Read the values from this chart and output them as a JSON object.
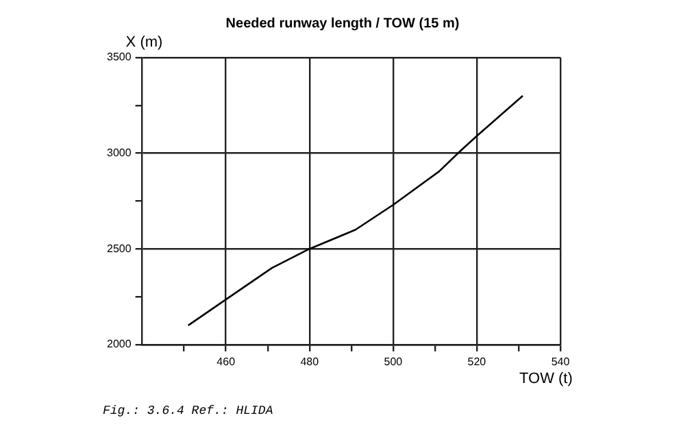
{
  "chart_data": {
    "type": "line",
    "title": "Needed runway length / TOW (15 m)",
    "xlabel": "TOW (t)",
    "ylabel": "X (m)",
    "x": [
      451,
      460,
      471,
      480,
      491,
      500,
      511,
      516,
      520,
      531
    ],
    "series": [
      {
        "color": "#000000",
        "values": [
          2100,
          2235,
          2400,
          2500,
          2600,
          2730,
          2905,
          3010,
          3090,
          3300
        ]
      }
    ],
    "xlim": [
      440,
      540
    ],
    "xticks": [
      {
        "value": 450,
        "label": null
      },
      460,
      {
        "value": 470,
        "label": null
      },
      480,
      {
        "value": 490,
        "label": null
      },
      500,
      {
        "value": 510,
        "label": null
      },
      520,
      {
        "value": 530,
        "label": null
      },
      540
    ],
    "ylim": [
      2000,
      3500
    ],
    "yticks": [
      2000,
      {
        "value": 2250,
        "label": null
      },
      2500,
      {
        "value": 2750,
        "label": null
      },
      3000,
      {
        "value": 3250,
        "label": null
      },
      3500
    ],
    "grid": true,
    "legend": false,
    "marker": "none",
    "line_style": "solid",
    "annotations": [
      "Fig.: 3.6.4 Ref.: HLIDA"
    ]
  }
}
